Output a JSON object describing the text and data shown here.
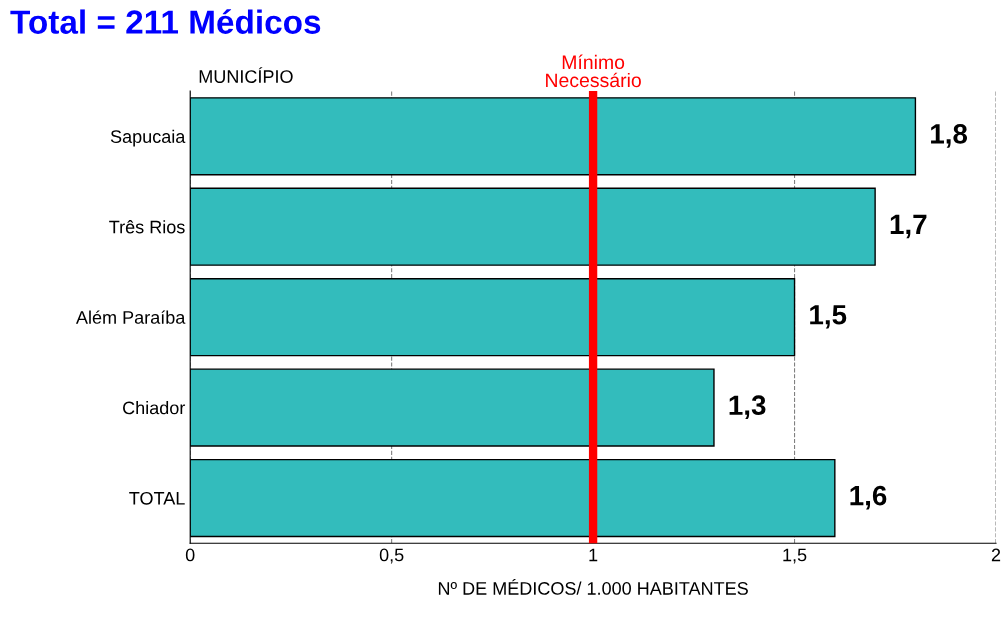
{
  "chart_data": {
    "type": "bar",
    "orientation": "horizontal",
    "title": "Total = 211 Médicos",
    "ylabel": "MUNICÍPIO",
    "xlabel": "Nº DE MÉDICOS/ 1.000 HABITANTES",
    "categories": [
      "Sapucaia",
      "Três Rios",
      "Além Paraíba",
      "Chiador",
      "TOTAL"
    ],
    "values": [
      1.8,
      1.7,
      1.5,
      1.3,
      1.6
    ],
    "value_labels": [
      "1,8",
      "1,7",
      "1,5",
      "1,3",
      "1,6"
    ],
    "color": "#33bcbc",
    "xlim": [
      0,
      2
    ],
    "xticks": [
      0,
      {
        "value": 0.5,
        "label": "0,5"
      },
      1,
      {
        "value": 1.5,
        "label": "1,5"
      },
      2
    ],
    "grid": "x",
    "ref_lines": [
      {
        "axis": "x",
        "value": 1,
        "label": "Mínimo\nNecessário",
        "color": "#ff0000",
        "line_style": "solid"
      }
    ]
  }
}
